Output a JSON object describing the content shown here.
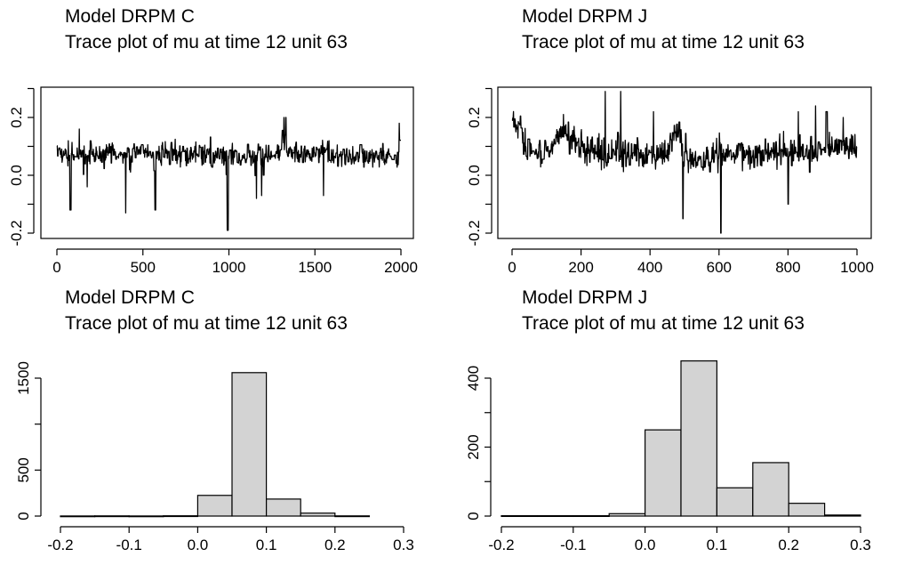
{
  "chart_data": [
    {
      "type": "line",
      "title": [
        "Model DRPM C",
        "Trace plot of mu at time 12 unit 63"
      ],
      "xlabel": "",
      "ylabel": "",
      "xlim": [
        0,
        2000
      ],
      "ylim": [
        -0.2,
        0.2
      ],
      "xticks": [
        "0",
        "500",
        "1000",
        "1500",
        "2000"
      ],
      "yticks": [
        "-0.2",
        "0.0",
        "0.2"
      ],
      "n_iterations": 2000,
      "baseline": 0.07,
      "noise_sd": 0.02,
      "x": [
        0,
        60,
        150,
        250,
        400,
        500,
        750,
        1000,
        1150,
        1250,
        1300,
        1310,
        1340,
        1450,
        1550,
        1700,
        1850,
        1980,
        2000
      ],
      "y": [
        0.08,
        0.07,
        0.07,
        0.08,
        0.07,
        0.08,
        0.07,
        0.07,
        0.06,
        0.08,
        0.07,
        0.15,
        0.08,
        0.07,
        0.08,
        0.07,
        0.07,
        0.05,
        0.14
      ],
      "spikes": [
        {
          "x": 75,
          "y": -0.12
        },
        {
          "x": 130,
          "y": 0.16
        },
        {
          "x": 175,
          "y": -0.04
        },
        {
          "x": 400,
          "y": -0.13
        },
        {
          "x": 570,
          "y": -0.12
        },
        {
          "x": 990,
          "y": -0.19
        },
        {
          "x": 1160,
          "y": -0.08
        },
        {
          "x": 1190,
          "y": -0.07
        },
        {
          "x": 1320,
          "y": 0.2
        },
        {
          "x": 1330,
          "y": 0.2
        },
        {
          "x": 1550,
          "y": -0.07
        },
        {
          "x": 1990,
          "y": 0.18
        }
      ]
    },
    {
      "type": "line",
      "title": [
        "Model DRPM J",
        "Trace plot of mu at time 12 unit 63"
      ],
      "xlabel": "",
      "ylabel": "",
      "xlim": [
        0,
        1000
      ],
      "ylim": [
        -0.2,
        0.2
      ],
      "xticks": [
        "0",
        "200",
        "400",
        "600",
        "800",
        "1000"
      ],
      "yticks": [
        "-0.2",
        "0.0",
        "0.2"
      ],
      "n_iterations": 1000,
      "baseline": 0.08,
      "noise_sd": 0.025,
      "x": [
        0,
        20,
        40,
        100,
        150,
        200,
        250,
        300,
        400,
        450,
        480,
        500,
        600,
        700,
        800,
        900,
        1000
      ],
      "y": [
        0.19,
        0.17,
        0.09,
        0.08,
        0.15,
        0.1,
        0.07,
        0.08,
        0.07,
        0.08,
        0.17,
        0.06,
        0.07,
        0.08,
        0.08,
        0.09,
        0.1
      ],
      "spikes": [
        {
          "x": 270,
          "y": 0.29
        },
        {
          "x": 315,
          "y": 0.29
        },
        {
          "x": 410,
          "y": 0.22
        },
        {
          "x": 495,
          "y": -0.15
        },
        {
          "x": 605,
          "y": -0.2
        },
        {
          "x": 800,
          "y": -0.1
        },
        {
          "x": 830,
          "y": 0.22
        },
        {
          "x": 880,
          "y": 0.24
        },
        {
          "x": 910,
          "y": 0.22
        },
        {
          "x": 960,
          "y": 0.2
        }
      ]
    },
    {
      "type": "bar",
      "title": [
        "Model DRPM C",
        "Trace plot of mu at time 12 unit 63"
      ],
      "xlabel": "",
      "ylabel": "",
      "xlim": [
        -0.2,
        0.3
      ],
      "ylim": [
        0,
        1500
      ],
      "xticks": [
        "-0.2",
        "-0.1",
        "0.0",
        "0.1",
        "0.2",
        "0.3"
      ],
      "yticks": [
        "0",
        "500",
        "1500"
      ],
      "bins": [
        [
          -0.2,
          -0.15
        ],
        [
          -0.15,
          -0.1
        ],
        [
          -0.1,
          -0.05
        ],
        [
          -0.05,
          0.0
        ],
        [
          0.0,
          0.05
        ],
        [
          0.05,
          0.1
        ],
        [
          0.1,
          0.15
        ],
        [
          0.15,
          0.2
        ],
        [
          0.2,
          0.25
        ]
      ],
      "values": [
        1,
        2,
        1,
        3,
        225,
        1560,
        185,
        32,
        2
      ]
    },
    {
      "type": "bar",
      "title": [
        "Model DRPM J",
        "Trace plot of mu at time 12 unit 63"
      ],
      "xlabel": "",
      "ylabel": "",
      "xlim": [
        -0.2,
        0.3
      ],
      "ylim": [
        0,
        400
      ],
      "xticks": [
        "-0.2",
        "-0.1",
        "0.0",
        "0.1",
        "0.2",
        "0.3"
      ],
      "yticks": [
        "0",
        "200",
        "400"
      ],
      "bins": [
        [
          -0.2,
          -0.15
        ],
        [
          -0.15,
          -0.1
        ],
        [
          -0.1,
          -0.05
        ],
        [
          -0.05,
          0.0
        ],
        [
          0.0,
          0.05
        ],
        [
          0.05,
          0.1
        ],
        [
          0.1,
          0.15
        ],
        [
          0.15,
          0.2
        ],
        [
          0.2,
          0.25
        ],
        [
          0.25,
          0.3
        ]
      ],
      "values": [
        1,
        1,
        1,
        7,
        250,
        450,
        82,
        155,
        37,
        3
      ]
    }
  ]
}
